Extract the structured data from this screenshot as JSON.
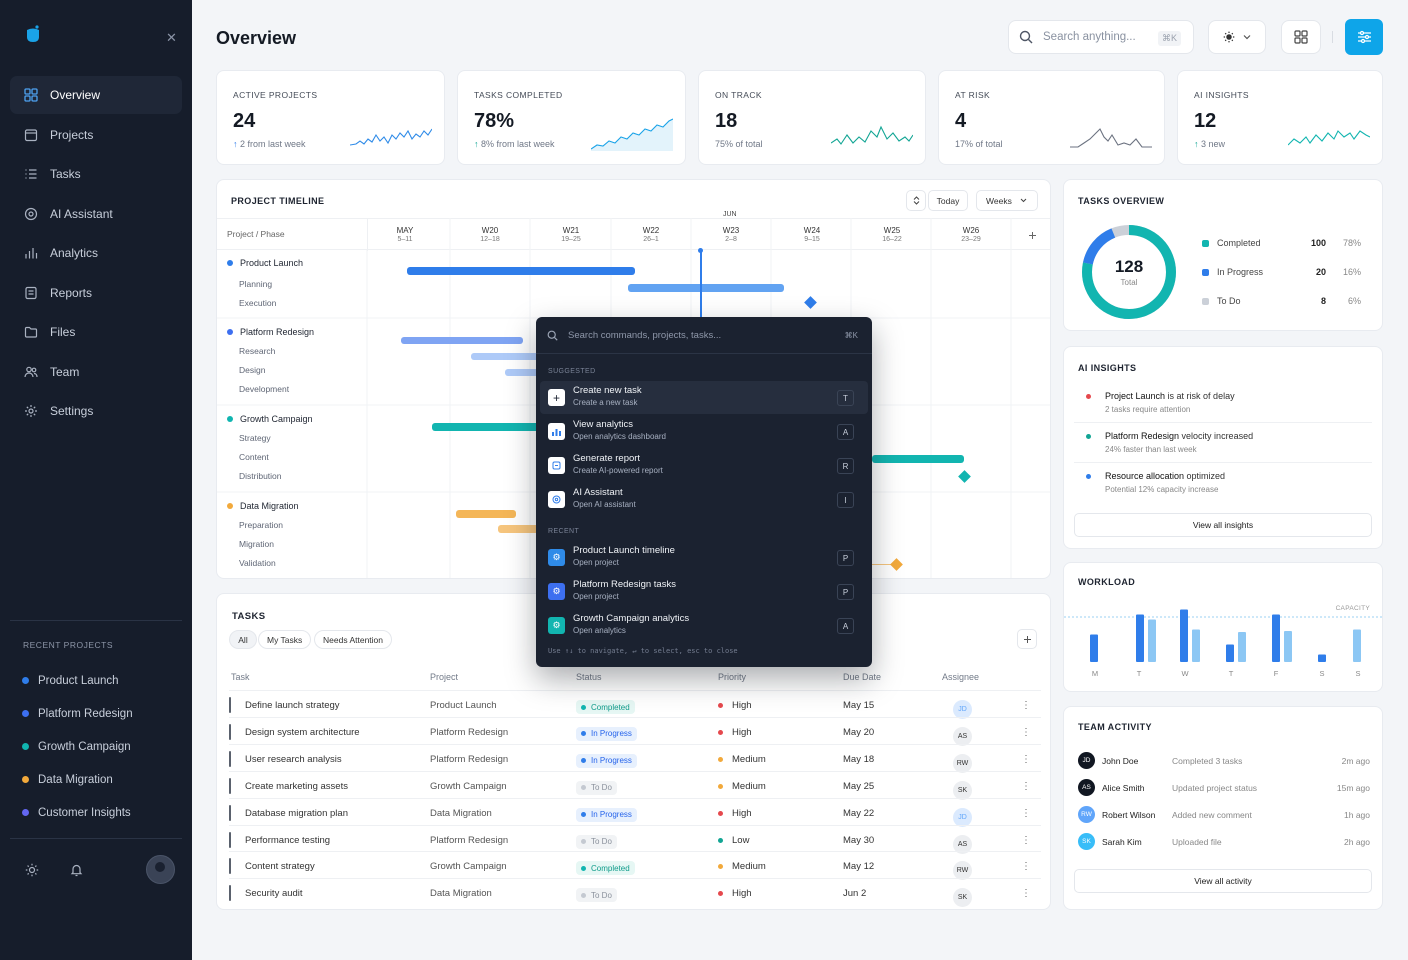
{
  "sidebar": {
    "nav": [
      {
        "label": "Overview",
        "icon": "grid-icon"
      },
      {
        "label": "Projects",
        "icon": "folder-icon"
      },
      {
        "label": "Tasks",
        "icon": "list-icon"
      },
      {
        "label": "AI Assistant",
        "icon": "ai-icon"
      },
      {
        "label": "Analytics",
        "icon": "chart-icon"
      },
      {
        "label": "Reports",
        "icon": "report-icon"
      },
      {
        "label": "Files",
        "icon": "file-icon"
      },
      {
        "label": "Team",
        "icon": "team-icon"
      },
      {
        "label": "Settings",
        "icon": "gear-icon"
      }
    ],
    "recent_title": "RECENT PROJECTS",
    "recent": [
      {
        "label": "Product Launch",
        "color": "#2f7dea"
      },
      {
        "label": "Platform Redesign",
        "color": "#3d6ff0"
      },
      {
        "label": "Growth Campaign",
        "color": "#10b5b0"
      },
      {
        "label": "Data Migration",
        "color": "#f2a93b"
      },
      {
        "label": "Customer Insights",
        "color": "#6366f1"
      }
    ]
  },
  "header": {
    "title": "Overview",
    "search_placeholder": "Search anything...",
    "search_shortcut": "⌘K"
  },
  "stats": [
    {
      "title": "ACTIVE PROJECTS",
      "value": "24",
      "sub": "2 from last week",
      "arrow": "↑"
    },
    {
      "title": "TASKS COMPLETED",
      "value": "78%",
      "sub": "8% from last week",
      "arrow": "↑"
    },
    {
      "title": "ON TRACK",
      "value": "18",
      "sub": "75% of total",
      "arrow": ""
    },
    {
      "title": "AT RISK",
      "value": "4",
      "sub": "17% of total",
      "arrow": ""
    },
    {
      "title": "AI INSIGHTS",
      "value": "12",
      "sub": "3 new",
      "arrow": "↑"
    }
  ],
  "timeline": {
    "title": "PROJECT TIMELINE",
    "today_label": "Today",
    "range_label": "Weeks",
    "col_header": "Project / Phase",
    "month_may": "MAY",
    "month_jun": "JUN",
    "weeks": [
      {
        "w": "MAY",
        "d": "5–11"
      },
      {
        "w": "W20",
        "d": "12–18"
      },
      {
        "w": "W21",
        "d": "19–25"
      },
      {
        "w": "W22",
        "d": "26–1"
      },
      {
        "w": "W23",
        "d": "2–8"
      },
      {
        "w": "W24",
        "d": "9–15"
      },
      {
        "w": "W25",
        "d": "16–22"
      },
      {
        "w": "W26",
        "d": "23–29"
      }
    ],
    "projects": [
      {
        "name": "Product Launch",
        "color": "#2f7dea",
        "phases": [
          "Planning",
          "Execution"
        ]
      },
      {
        "name": "Platform Redesign",
        "color": "#3d6ff0",
        "phases": [
          "Research",
          "Design",
          "Development"
        ]
      },
      {
        "name": "Growth Campaign",
        "color": "#10b5b0",
        "phases": [
          "Strategy",
          "Content",
          "Distribution"
        ]
      },
      {
        "name": "Data Migration",
        "color": "#f2a93b",
        "phases": [
          "Preparation",
          "Migration",
          "Validation"
        ]
      }
    ]
  },
  "tasks": {
    "title": "TASKS",
    "filters": [
      "All",
      "My Tasks",
      "Needs Attention"
    ],
    "columns": [
      "Task",
      "Project",
      "Status",
      "Priority",
      "Due Date",
      "Assignee"
    ],
    "rows": [
      {
        "task": "Define launch strategy",
        "project": "Product Launch",
        "status": "Completed",
        "priority": "High",
        "due": "May 15",
        "assignee": "JD"
      },
      {
        "task": "Design system architecture",
        "project": "Platform Redesign",
        "status": "In Progress",
        "priority": "High",
        "due": "May 20",
        "assignee": "AS"
      },
      {
        "task": "User research analysis",
        "project": "Platform Redesign",
        "status": "In Progress",
        "priority": "Medium",
        "due": "May 18",
        "assignee": "RW"
      },
      {
        "task": "Create marketing assets",
        "project": "Growth Campaign",
        "status": "To Do",
        "priority": "Medium",
        "due": "May 25",
        "assignee": "SK"
      },
      {
        "task": "Database migration plan",
        "project": "Data Migration",
        "status": "In Progress",
        "priority": "High",
        "due": "May 22",
        "assignee": "JD"
      },
      {
        "task": "Performance testing",
        "project": "Platform Redesign",
        "status": "To Do",
        "priority": "Low",
        "due": "May 30",
        "assignee": "AS"
      },
      {
        "task": "Content strategy",
        "project": "Growth Campaign",
        "status": "Completed",
        "priority": "Medium",
        "due": "May 12",
        "assignee": "RW"
      },
      {
        "task": "Security audit",
        "project": "Data Migration",
        "status": "To Do",
        "priority": "High",
        "due": "Jun 2",
        "assignee": "SK"
      }
    ]
  },
  "tasks_overview": {
    "title": "TASKS OVERVIEW",
    "total": "128",
    "total_label": "Total",
    "legend": [
      {
        "label": "Completed",
        "count": "100",
        "pct": "78%",
        "color": "#12b5b0"
      },
      {
        "label": "In Progress",
        "count": "20",
        "pct": "16%",
        "color": "#2f7dea"
      },
      {
        "label": "To Do",
        "count": "8",
        "pct": "6%",
        "color": "#cbd0d8"
      }
    ]
  },
  "ai_insights": {
    "title": "AI INSIGHTS",
    "items": [
      {
        "strong": "Project Launch",
        "rest": " is at risk of delay",
        "sub": "2 tasks require attention",
        "color": "#e5484d"
      },
      {
        "strong": "Platform Redesign",
        "rest": " velocity increased",
        "sub": "24% faster than last week",
        "color": "#12a594"
      },
      {
        "strong": "Resource allocation",
        "rest": " optimized",
        "sub": "Potential 12% capacity increase",
        "color": "#2f7dea"
      }
    ],
    "button": "View all insights"
  },
  "workload": {
    "title": "WORKLOAD",
    "capacity_label": "CAPACITY",
    "days": [
      "M",
      "T",
      "W",
      "T",
      "F",
      "S",
      "S"
    ],
    "series": [
      {
        "name": "a",
        "values": [
          0.55,
          0.95,
          1.05,
          0.35,
          0.95,
          0.15,
          0
        ]
      },
      {
        "name": "b",
        "values": [
          0,
          0.85,
          0.65,
          0.6,
          0.62,
          0,
          0.65
        ]
      }
    ]
  },
  "team_activity": {
    "title": "TEAM ACTIVITY",
    "items": [
      {
        "initials": "JD",
        "name": "John Doe",
        "action": "Completed 3 tasks",
        "time": "2m ago",
        "bg": "#111722"
      },
      {
        "initials": "AS",
        "name": "Alice Smith",
        "action": "Updated project status",
        "time": "15m ago",
        "bg": "#111722"
      },
      {
        "initials": "RW",
        "name": "Robert Wilson",
        "action": "Added new comment",
        "time": "1h ago",
        "bg": "#60a5fa"
      },
      {
        "initials": "SK",
        "name": "Sarah Kim",
        "action": "Uploaded file",
        "time": "2h ago",
        "bg": "#38bdf8"
      }
    ],
    "button": "View all activity"
  },
  "palette": {
    "placeholder": "Search commands, projects, tasks...",
    "shortcut": "⌘K",
    "suggested_label": "SUGGESTED",
    "recent_label": "RECENT",
    "suggested": [
      {
        "title": "Create new task",
        "sub": "Create a new task",
        "key": "T",
        "icon": "plus-icon",
        "color": "#ffffff"
      },
      {
        "title": "View analytics",
        "sub": "Open analytics dashboard",
        "key": "A",
        "icon": "analytics-icon",
        "color": "#ffffff"
      },
      {
        "title": "Generate report",
        "sub": "Create AI-powered report",
        "key": "R",
        "icon": "report-icon",
        "color": "#ffffff"
      },
      {
        "title": "AI Assistant",
        "sub": "Open AI assistant",
        "key": "I",
        "icon": "ai-icon",
        "color": "#ffffff"
      }
    ],
    "recent": [
      {
        "title": "Product Launch timeline",
        "sub": "Open project",
        "key": "P",
        "icon": "project-icon",
        "color": "#2f8be8"
      },
      {
        "title": "Platform Redesign tasks",
        "sub": "Open project",
        "key": "P",
        "icon": "project-icon",
        "color": "#3d6ff0"
      },
      {
        "title": "Growth Campaign analytics",
        "sub": "Open analytics",
        "key": "A",
        "icon": "project-icon",
        "color": "#12b5b0"
      }
    ],
    "hint": "Use ↑↓ to navigate, ↵ to select, esc to close"
  }
}
